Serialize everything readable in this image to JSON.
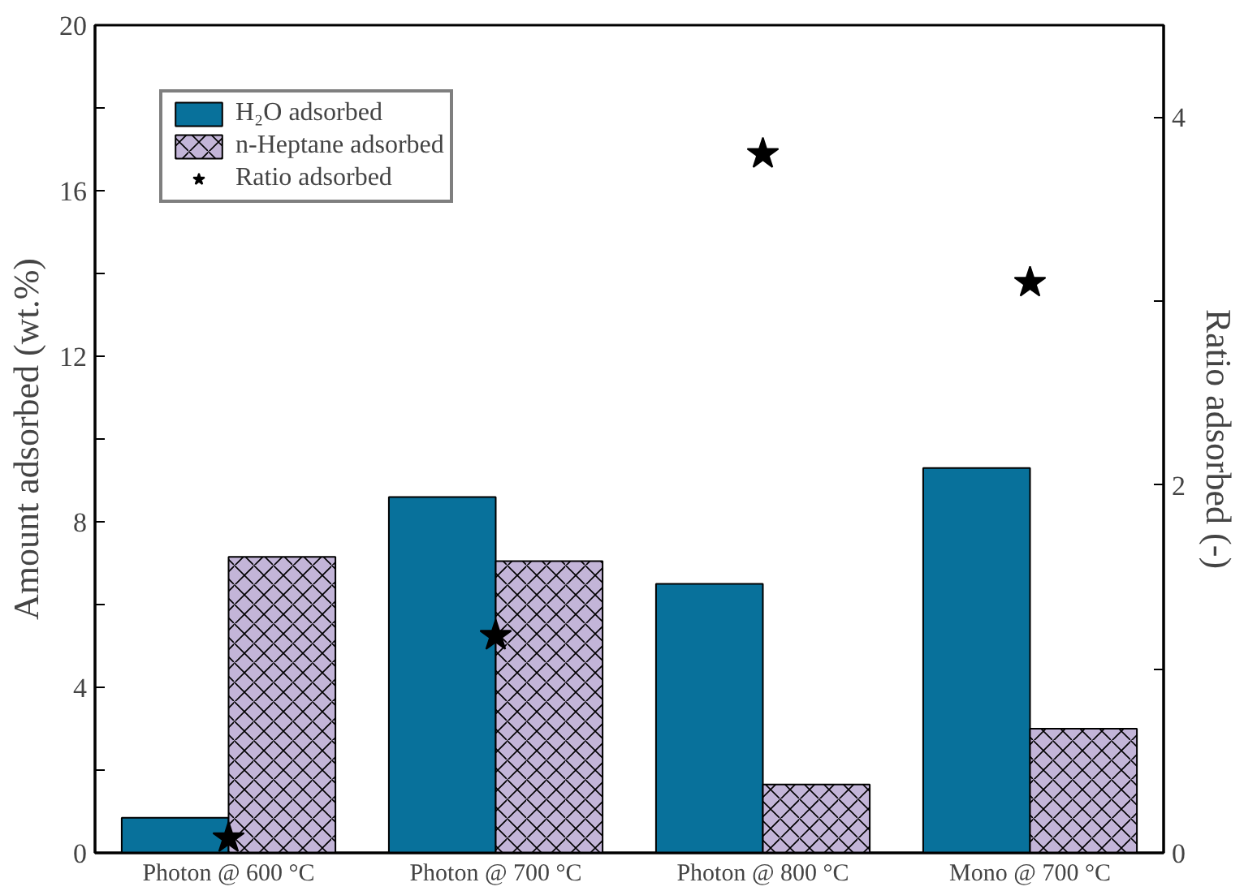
{
  "chart_data": {
    "type": "bar",
    "categories": [
      "Photon @ 600 °C",
      "Photon @ 700 °C",
      "Photon @ 800 °C",
      "Mono @ 700 °C"
    ],
    "series": [
      {
        "name": "H₂O adsorbed",
        "color": "#08719b",
        "values": [
          0.85,
          8.6,
          6.5,
          9.3
        ]
      },
      {
        "name": "n-Heptane adsorbed",
        "color": "#c3b5d8",
        "values": [
          7.15,
          7.05,
          1.65,
          3.0
        ]
      },
      {
        "name": "Ratio adsorbed",
        "type": "scatter",
        "marker": "star",
        "axis": "y2",
        "color": "#000000",
        "values": [
          0.08,
          1.18,
          3.8,
          3.1
        ]
      }
    ],
    "ylabel": "Amount adsorbed (wt.%)",
    "y2label": "Ratio adsorbed (-)",
    "ylim": [
      0,
      20
    ],
    "yticks": [
      0,
      {
        "value": 2,
        "label": null
      },
      4,
      {
        "value": 6,
        "label": null
      },
      8,
      {
        "value": 10,
        "label": null
      },
      12,
      {
        "value": 14,
        "label": null
      },
      16,
      {
        "value": 18,
        "label": null
      },
      20
    ],
    "y2lim": [
      0,
      4.5
    ],
    "y2ticks": [
      0,
      {
        "value": 1,
        "label": null
      },
      2,
      {
        "value": 3,
        "label": null
      },
      4
    ],
    "grid": false,
    "legend": "top left"
  }
}
